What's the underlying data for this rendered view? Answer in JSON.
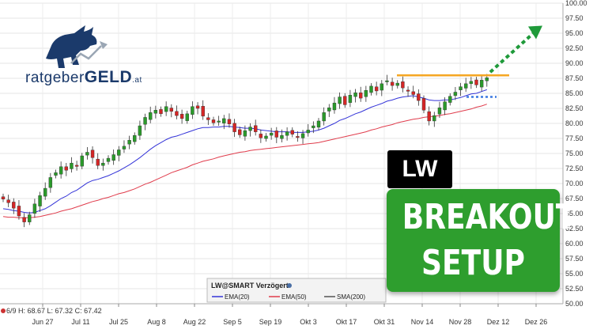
{
  "chart_data": {
    "type": "candlestick",
    "symbol": "LW",
    "x_ticks": [
      "Jun 27",
      "Jul 11",
      "Jul 25",
      "Aug 8",
      "Aug 22",
      "Sep 5",
      "Sep 19",
      "Okt 3",
      "Okt 17",
      "Okt 31",
      "Nov 14",
      "Nov 28",
      "Dez 12",
      "Dez 26"
    ],
    "y_ticks": [
      "100.00",
      "97.50",
      "95.00",
      "92.50",
      "90.00",
      "87.50",
      "85.00",
      "82.50",
      "80.00",
      "77.50",
      "75.00",
      "72.50",
      "70.00",
      "67.50",
      "65.00",
      "62.50",
      "60.00",
      "57.50",
      "55.00",
      "52.50",
      "50.00"
    ],
    "ylim": [
      50,
      100
    ],
    "grid": true,
    "readout": "6/9  H: 68.67  L: 67.32  C: 67.42",
    "closes": [
      67.4,
      66.8,
      65.9,
      64.6,
      63.6,
      64.8,
      66.6,
      68.0,
      69.2,
      71.0,
      71.8,
      72.8,
      72.2,
      73.4,
      73.0,
      74.6,
      75.2,
      74.3,
      73.0,
      73.4,
      74.2,
      74.8,
      75.6,
      76.2,
      77.2,
      78.0,
      79.6,
      81.0,
      81.8,
      82.2,
      81.6,
      82.8,
      82.0,
      81.3,
      80.8,
      81.6,
      82.8,
      82.5,
      81.2,
      80.6,
      80.1,
      80.4,
      80.8,
      79.9,
      78.6,
      78.1,
      78.8,
      79.4,
      78.6,
      77.6,
      77.9,
      78.4,
      77.7,
      78.0,
      78.6,
      78.2,
      77.7,
      78.3,
      78.9,
      79.6,
      80.4,
      81.8,
      82.6,
      83.4,
      84.4,
      83.1,
      84.7,
      85.1,
      84.2,
      85.5,
      86.2,
      85.4,
      86.6,
      87.1,
      86.3,
      86.7,
      85.9,
      85.4,
      84.8,
      83.8,
      82.2,
      80.4,
      81.3,
      82.6,
      83.6,
      84.5,
      85.2,
      86.1,
      86.6,
      87.0,
      86.4,
      87.2,
      87.6
    ],
    "series": [
      {
        "name": "EMA(20)",
        "color": "#3434d8",
        "values": [
          65.8,
          65.7,
          65.5,
          65.4,
          65.2,
          65.1,
          65.2,
          65.5,
          65.8,
          66.3,
          66.9,
          67.5,
          67.9,
          68.5,
          68.9,
          69.5,
          70.1,
          70.5,
          70.7,
          71.0,
          71.3,
          71.7,
          72.1,
          72.6,
          73.1,
          73.7,
          74.3,
          75.0,
          75.7,
          76.3,
          76.8,
          77.3,
          77.7,
          77.9,
          78.2,
          78.5,
          78.8,
          79.1,
          79.3,
          79.3,
          79.4,
          79.4,
          79.5,
          79.5,
          79.4,
          79.3,
          79.2,
          79.2,
          79.1,
          78.9,
          78.8,
          78.7,
          78.6,
          78.6,
          78.6,
          78.5,
          78.5,
          78.5,
          78.6,
          78.7,
          78.9,
          79.2,
          79.6,
          80.0,
          80.5,
          80.8,
          81.2,
          81.6,
          81.9,
          82.3,
          82.7,
          83.0,
          83.3,
          83.7,
          83.9,
          84.2,
          84.4,
          84.5,
          84.6,
          84.4,
          84.2,
          83.9,
          83.8,
          83.8,
          83.9,
          83.9,
          84.1,
          84.3,
          84.6,
          84.9,
          85.0,
          85.3,
          85.6
        ]
      },
      {
        "name": "EMA(50)",
        "color": "#e03c4c",
        "values": [
          64.5,
          64.4,
          64.4,
          64.3,
          64.3,
          64.3,
          64.4,
          64.5,
          64.7,
          64.9,
          65.1,
          65.4,
          65.6,
          65.8,
          66.1,
          66.4,
          66.7,
          67.0,
          67.2,
          67.5,
          67.7,
          68.0,
          68.3,
          68.5,
          68.8,
          69.1,
          69.5,
          69.9,
          70.2,
          70.6,
          71.0,
          71.4,
          71.8,
          72.1,
          72.4,
          72.7,
          73.1,
          73.4,
          73.7,
          73.9,
          74.1,
          74.4,
          74.6,
          74.8,
          75.0,
          75.2,
          75.3,
          75.5,
          75.6,
          75.7,
          75.8,
          75.9,
          76.0,
          76.1,
          76.2,
          76.3,
          76.4,
          76.5,
          76.6,
          76.7,
          76.8,
          77.0,
          77.2,
          77.4,
          77.6,
          77.8,
          78.0,
          78.2,
          78.4,
          78.6,
          78.9,
          79.1,
          79.4,
          79.6,
          79.8,
          80.1,
          80.3,
          80.5,
          80.7,
          80.8,
          81.0,
          81.1,
          81.2,
          81.3,
          81.5,
          81.6,
          81.8,
          82.0,
          82.2,
          82.4,
          82.7,
          82.9,
          83.2
        ]
      }
    ],
    "resistance_level": 88.0,
    "support_level": 84.4,
    "arrow_target": 95.6,
    "colors": {
      "up": "#2a9a2a",
      "down": "#d42626",
      "resistance": "#f5a623",
      "support": "#3a78e0",
      "arrow": "#1f9a3a"
    }
  },
  "legend": {
    "title": "LW@SMART Verzögert",
    "items": [
      {
        "label": "EMA(20)",
        "color": "#3434d8"
      },
      {
        "label": "EMA(50)",
        "color": "#e03c4c"
      },
      {
        "label": "SMA(200)",
        "color": "#555555"
      }
    ]
  },
  "logo": {
    "text_left": "ratgeber",
    "text_bold": "GELD",
    "text_suffix": ".at"
  },
  "badge": {
    "ticker": "LW",
    "line1": "BREAKOUT",
    "line2": "SETUP"
  }
}
